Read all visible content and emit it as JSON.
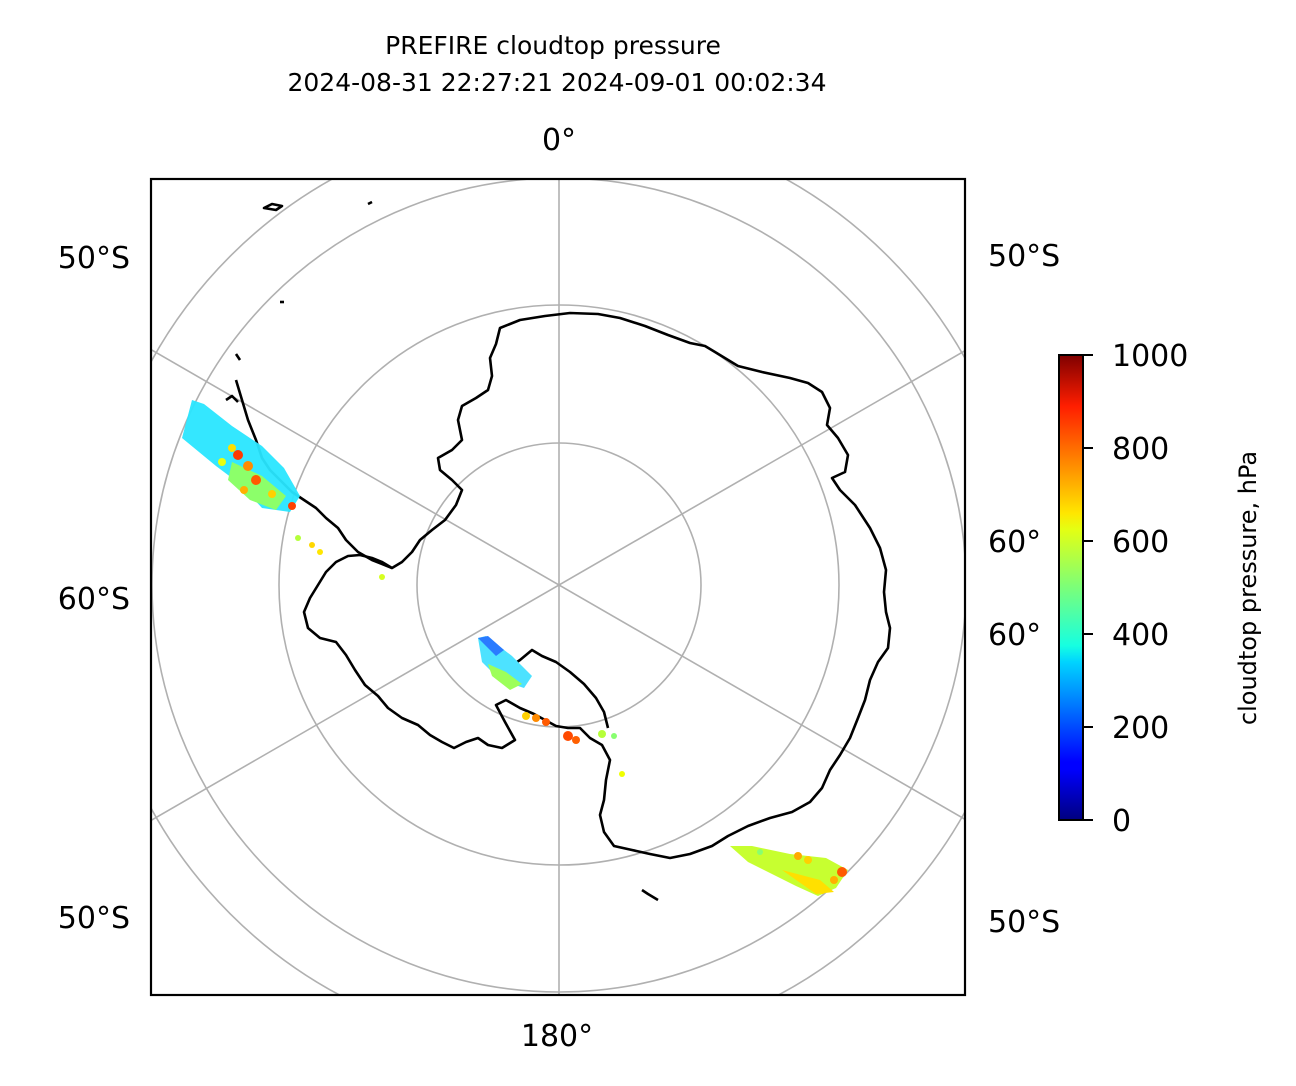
{
  "title": {
    "line1": "PREFIRE cloudtop pressure",
    "line2": "2024-08-31 22:27:21 2024-09-01 00:02:34"
  },
  "map": {
    "projection": "south-polar-stereographic",
    "labels": {
      "top": "0°",
      "bottom": "180°",
      "left_upper": "50°S",
      "left_middle": "60°S",
      "left_lower": "50°S",
      "right_upper": "50°S",
      "right_mid_a": "60°",
      "right_mid_b": "60°",
      "right_lower": "50°S"
    }
  },
  "colorbar": {
    "label": "cloudtop pressure, hPa",
    "colormap": "jet",
    "min": 0,
    "max": 1000,
    "ticks": [
      "0",
      "200",
      "400",
      "600",
      "800",
      "1000"
    ]
  },
  "chart_data": {
    "type": "scatter",
    "title": "PREFIRE cloudtop pressure\n2024-08-31 22:27:21 2024-09-01 00:02:34",
    "colorbar_label": "cloudtop pressure, hPa",
    "colorbar_range": [
      0,
      1000
    ],
    "swaths": [
      {
        "name": "swath-west",
        "values_hpa_range": [
          350,
          900
        ]
      },
      {
        "name": "swath-center",
        "values_hpa_range": [
          250,
          900
        ]
      },
      {
        "name": "swath-east",
        "values_hpa_range": [
          550,
          900
        ]
      }
    ],
    "grid": true
  }
}
